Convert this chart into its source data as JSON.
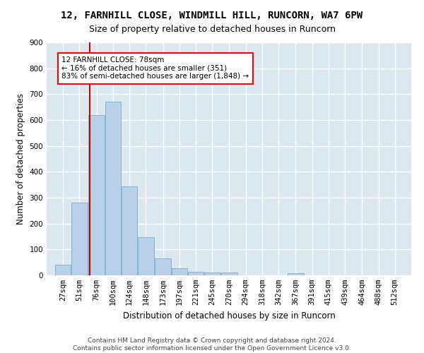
{
  "title": "12, FARNHILL CLOSE, WINDMILL HILL, RUNCORN, WA7 6PW",
  "subtitle": "Size of property relative to detached houses in Runcorn",
  "xlabel": "Distribution of detached houses by size in Runcorn",
  "ylabel": "Number of detached properties",
  "footnote1": "Contains HM Land Registry data © Crown copyright and database right 2024.",
  "footnote2": "Contains public sector information licensed under the Open Government Licence v3.0.",
  "annotation_line1": "12 FARNHILL CLOSE: 78sqm",
  "annotation_line2": "← 16% of detached houses are smaller (351)",
  "annotation_line3": "83% of semi-detached houses are larger (1,848) →",
  "bar_labels": [
    "27sqm",
    "51sqm",
    "76sqm",
    "100sqm",
    "124sqm",
    "148sqm",
    "173sqm",
    "197sqm",
    "221sqm",
    "245sqm",
    "270sqm",
    "294sqm",
    "318sqm",
    "342sqm",
    "367sqm",
    "391sqm",
    "415sqm",
    "439sqm",
    "464sqm",
    "488sqm",
    "512sqm"
  ],
  "bar_values": [
    40,
    280,
    620,
    670,
    345,
    148,
    65,
    28,
    15,
    12,
    10,
    0,
    0,
    0,
    8,
    0,
    0,
    0,
    0,
    0,
    0
  ],
  "bar_color": "#b8d0e8",
  "bar_edge_color": "#7aaacf",
  "fig_bg_color": "#ffffff",
  "ax_bg_color": "#dce8f0",
  "grid_color": "#ffffff",
  "vline_color": "#cc0000",
  "ylim": [
    0,
    900
  ],
  "yticks": [
    0,
    100,
    200,
    300,
    400,
    500,
    600,
    700,
    800,
    900
  ],
  "title_fontsize": 10,
  "subtitle_fontsize": 9,
  "axis_label_fontsize": 8.5,
  "tick_fontsize": 7.5,
  "annotation_fontsize": 7.5,
  "bin_width": 24,
  "property_sqm": 78
}
